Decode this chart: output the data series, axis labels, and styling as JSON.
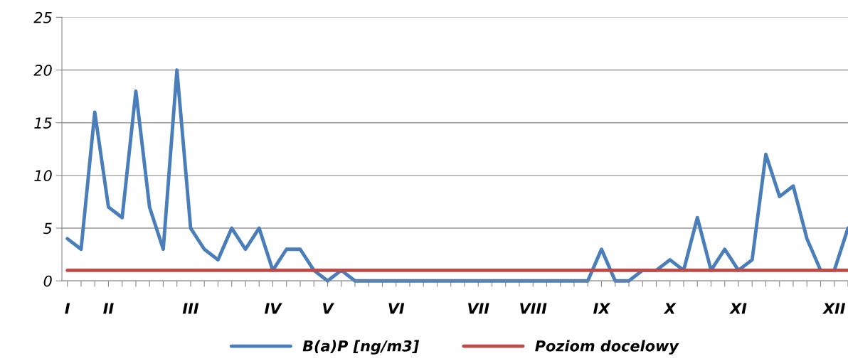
{
  "chart_data": {
    "type": "line",
    "categories": [
      "I",
      null,
      null,
      "II",
      null,
      null,
      null,
      null,
      null,
      "III",
      null,
      null,
      null,
      null,
      null,
      "IV",
      null,
      null,
      null,
      "V",
      null,
      null,
      null,
      null,
      "VI",
      null,
      null,
      null,
      null,
      null,
      "VII",
      null,
      null,
      null,
      "VIII",
      null,
      null,
      null,
      null,
      "IX",
      null,
      null,
      null,
      null,
      "X",
      null,
      null,
      null,
      null,
      "XI",
      null,
      null,
      null,
      null,
      null,
      null,
      "XII",
      null
    ],
    "series": [
      {
        "name": "B(a)P [ng/m3]",
        "color": "#4a7ebb",
        "values": [
          4,
          3,
          16,
          7,
          6,
          18,
          7,
          3,
          20,
          5,
          3,
          2,
          5,
          3,
          5,
          1,
          3,
          3,
          1,
          0,
          1,
          0,
          0,
          0,
          0,
          0,
          0,
          0,
          0,
          0,
          0,
          0,
          0,
          0,
          0,
          0,
          0,
          0,
          0,
          3,
          0,
          0,
          1,
          1,
          2,
          1,
          6,
          1,
          3,
          1,
          2,
          12,
          8,
          9,
          4,
          1,
          1,
          5
        ]
      },
      {
        "name": "Poziom docelowy",
        "color": "#be4b48",
        "values": [
          1,
          1,
          1,
          1,
          1,
          1,
          1,
          1,
          1,
          1,
          1,
          1,
          1,
          1,
          1,
          1,
          1,
          1,
          1,
          1,
          1,
          1,
          1,
          1,
          1,
          1,
          1,
          1,
          1,
          1,
          1,
          1,
          1,
          1,
          1,
          1,
          1,
          1,
          1,
          1,
          1,
          1,
          1,
          1,
          1,
          1,
          1,
          1,
          1,
          1,
          1,
          1,
          1,
          1,
          1,
          1,
          1,
          1
        ]
      }
    ],
    "ylim": [
      0,
      25
    ],
    "yticks": [
      0,
      5,
      10,
      15,
      20,
      25
    ],
    "grid": "y",
    "legend": "bottom",
    "marker": "none",
    "line_style": "solid"
  }
}
